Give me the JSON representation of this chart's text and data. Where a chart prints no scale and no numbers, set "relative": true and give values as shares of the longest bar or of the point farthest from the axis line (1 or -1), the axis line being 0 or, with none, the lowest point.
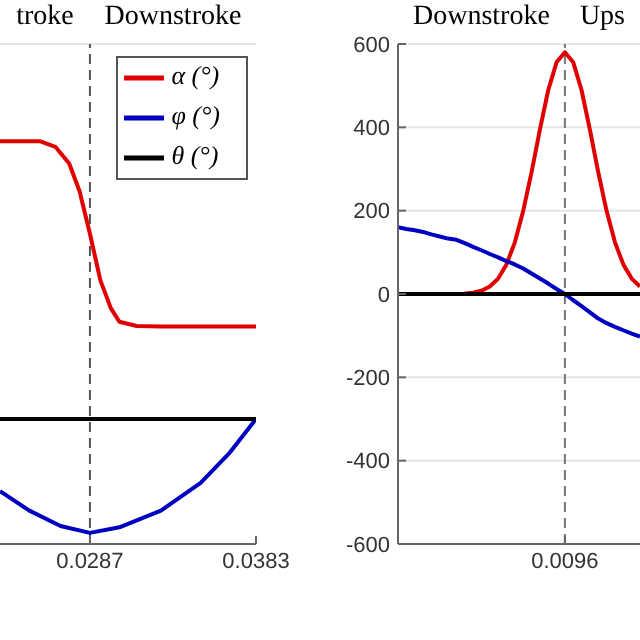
{
  "chart_data": [
    {
      "type": "line",
      "relative": true,
      "tick_labels": "x",
      "grid": "y",
      "legend": "top right",
      "annotations": [
        "troke",
        "Downstroke"
      ],
      "xlim": [
        0.0235,
        0.0383
      ],
      "xticks": [
        0.0287,
        0.0383
      ],
      "ref_lines": [
        {
          "axis": "x",
          "value": 0.0287,
          "label": null,
          "color": "#555555",
          "line_style": "dashed"
        }
      ],
      "series": [
        {
          "name": "α (°)",
          "color": "#e00000",
          "x": [
            0.0235,
            0.0258,
            0.0267,
            0.0275,
            0.0281,
            0.0287,
            0.0293,
            0.0299,
            0.0304,
            0.0314,
            0.0328,
            0.0383
          ],
          "values": [
            1,
            1,
            0.98,
            0.92,
            0.82,
            0.667,
            0.5,
            0.4,
            0.35,
            0.335,
            0.333,
            0.333
          ]
        },
        {
          "name": "φ (°)",
          "color": "#0000c0",
          "x": [
            0.0235,
            0.0252,
            0.027,
            0.0287,
            0.0304,
            0.0328,
            0.0351,
            0.0368,
            0.0383
          ],
          "values": [
            -0.26,
            -0.33,
            -0.385,
            -0.41,
            -0.39,
            -0.33,
            -0.23,
            -0.12,
            0
          ]
        },
        {
          "name": "θ (°)",
          "color": "#000000",
          "x": [
            0.0235,
            0.0383
          ],
          "values": [
            0,
            0
          ]
        }
      ]
    },
    {
      "type": "line",
      "grid": "y",
      "legend": false,
      "annotations": [
        "Downstroke",
        "Ups"
      ],
      "categories": [
        null,
        null,
        null,
        null,
        null,
        null,
        null,
        null,
        null,
        null,
        null,
        null,
        null,
        null,
        null,
        null,
        null,
        null,
        null,
        null,
        "0.0096",
        null,
        null,
        null,
        null,
        null,
        null,
        null,
        null,
        null
      ],
      "ylim": [
        -600,
        600
      ],
      "yticks": [
        -600,
        -400,
        -200,
        0,
        200,
        400,
        600
      ],
      "ref_lines": [
        {
          "axis": "x",
          "value": "0.0096",
          "label": null,
          "color": "#777777",
          "line_style": "dashed"
        }
      ],
      "series": [
        {
          "color": "#e00000",
          "values": [
            null,
            null,
            null,
            null,
            null,
            null,
            null,
            null,
            1,
            3,
            8,
            18,
            37,
            71,
            124,
            199,
            292,
            394,
            489,
            556,
            580,
            556,
            489,
            394,
            292,
            199,
            124,
            71,
            37,
            18
          ]
        },
        {
          "color": "#0000c0",
          "values": [
            160,
            156,
            153,
            149,
            143,
            138,
            133,
            130,
            122,
            113,
            105,
            96,
            88,
            79,
            71,
            61,
            49,
            37,
            25,
            12,
            0,
            -15,
            -29,
            -44,
            -59,
            -70,
            -79,
            -87,
            -95,
            -102
          ]
        },
        {
          "color": "#000000",
          "values": [
            0,
            0,
            0,
            0,
            0,
            0,
            0,
            0,
            0,
            0,
            0,
            0,
            0,
            0,
            0,
            0,
            0,
            0,
            0,
            0,
            0,
            0,
            0,
            0,
            0,
            0,
            0,
            0,
            0,
            0
          ]
        }
      ]
    }
  ]
}
